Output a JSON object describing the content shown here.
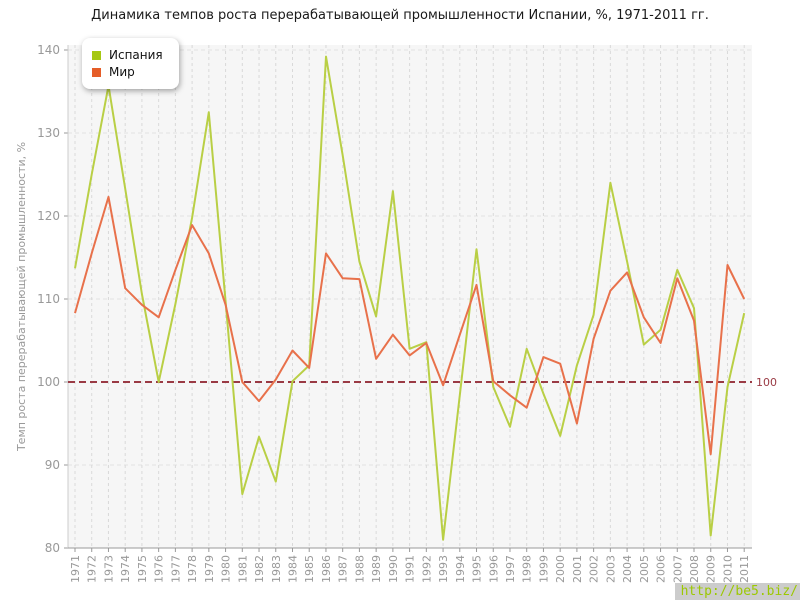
{
  "title": "Динамика темпов роста перерабатывающей промышленности Испании, %, 1971-2011 гг.",
  "watermark": "http://be5.biz/",
  "legend": {
    "items": [
      {
        "label": "Испания",
        "color": "#a6c813"
      },
      {
        "label": "Мир",
        "color": "#e55d28"
      }
    ]
  },
  "colors": {
    "spain_line": "#b9cf45",
    "world_line": "#e8714b",
    "baseline": "#9a3a44",
    "plot_bg": "#f6f6f6",
    "grid_v": "#d9d9d9",
    "grid_h": "#e3e3e3",
    "axis_left": "#cccccc",
    "axis_bottom": "#999999",
    "tick_text": "#999999"
  },
  "chart_data": {
    "type": "line",
    "title": "Динамика темпов роста перерабатывающей промышленности Испании, %, 1971-2011 гг.",
    "xlabel": "",
    "ylabel": "Темп роста перерабатывающей промышленности, %",
    "ylim": [
      80,
      140
    ],
    "yticks": [
      80,
      90,
      100,
      110,
      120,
      130,
      140
    ],
    "grid": true,
    "legend_position": "top-left",
    "baseline": {
      "value": 100,
      "label": "100",
      "color": "#9a3a44"
    },
    "x": [
      1971,
      1972,
      1973,
      1974,
      1975,
      1976,
      1977,
      1978,
      1979,
      1980,
      1981,
      1982,
      1983,
      1984,
      1985,
      1986,
      1987,
      1988,
      1989,
      1990,
      1991,
      1992,
      1993,
      1994,
      1995,
      1996,
      1997,
      1998,
      1999,
      2000,
      2001,
      2002,
      2003,
      2004,
      2005,
      2006,
      2007,
      2008,
      2009,
      2010,
      2011
    ],
    "series": [
      {
        "name": "Испания",
        "color": "#b9cf45",
        "values": [
          113.7,
          125.0,
          135.7,
          123.3,
          110.6,
          100.0,
          109.4,
          119.8,
          132.5,
          109.7,
          86.5,
          93.4,
          88.0,
          100.1,
          102.0,
          139.2,
          127.3,
          114.5,
          107.9,
          123.0,
          104.0,
          104.8,
          81.0,
          98.4,
          116.0,
          99.4,
          94.6,
          104.0,
          98.6,
          93.5,
          102.0,
          108.1,
          124.0,
          114.5,
          104.5,
          106.3,
          113.5,
          108.9,
          81.5,
          99.4,
          108.3
        ]
      },
      {
        "name": "Мир",
        "color": "#e8714b",
        "values": [
          108.3,
          115.5,
          122.3,
          111.3,
          109.3,
          107.8,
          113.5,
          118.9,
          115.5,
          109.3,
          100.0,
          97.7,
          100.3,
          103.8,
          101.7,
          115.5,
          112.5,
          112.4,
          102.8,
          105.7,
          103.2,
          104.7,
          99.6,
          105.7,
          111.7,
          100.1,
          98.4,
          96.9,
          103.0,
          102.2,
          95.0,
          105.2,
          111.0,
          113.2,
          107.8,
          104.7,
          112.5,
          107.4,
          91.3,
          114.1,
          110.0
        ]
      }
    ]
  }
}
